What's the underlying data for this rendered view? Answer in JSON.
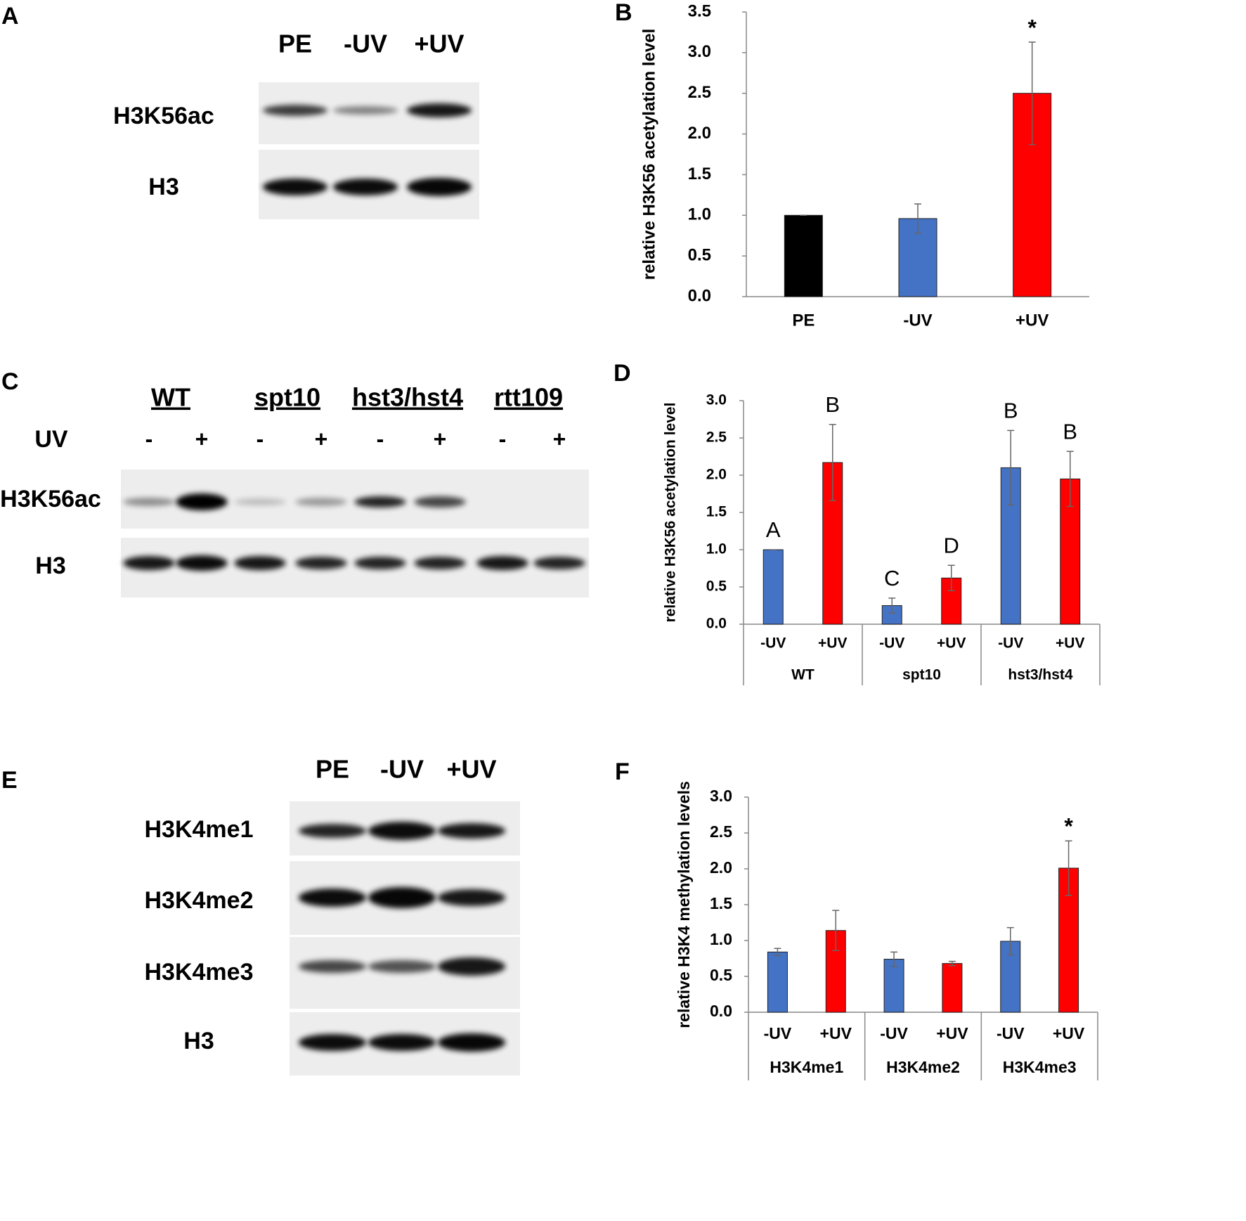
{
  "blots": [
    {
      "panel": "A",
      "lanes": [
        "PE",
        "-UV",
        "+UV"
      ],
      "rows": [
        "H3K56ac",
        "H3"
      ]
    },
    {
      "panel": "C",
      "strains": [
        "WT",
        "spt10",
        "hst3/hst4",
        "rtt109"
      ],
      "treatment": "UV",
      "lanes": [
        "-",
        "+",
        "-",
        "+",
        "-",
        "+",
        "-",
        "+"
      ],
      "rows": [
        "H3K56ac",
        "H3"
      ]
    },
    {
      "panel": "E",
      "lanes": [
        "PE",
        "-UV",
        "+UV"
      ],
      "rows": [
        "H3K4me1",
        "H3K4me2",
        "H3K4me3",
        "H3"
      ]
    }
  ],
  "chart_data": [
    {
      "type": "bar",
      "panel": "B",
      "ylabel": "relative H3K56 acetylation level",
      "categories": [
        "PE",
        "-UV",
        "+UV"
      ],
      "values": [
        1.0,
        0.96,
        2.5
      ],
      "errors": [
        0,
        0.18,
        0.63
      ],
      "colors": [
        "#000000",
        "#4472c4",
        "#ff0000"
      ],
      "annotations": [
        null,
        null,
        "*"
      ],
      "ylim": [
        0,
        3.5
      ],
      "yticks": [
        {
          "value": 0,
          "label": "0.0"
        },
        {
          "value": 0.5,
          "label": "0.5"
        },
        {
          "value": 1,
          "label": "1.0"
        },
        {
          "value": 1.5,
          "label": "1.5"
        },
        {
          "value": 2,
          "label": "2.0"
        },
        {
          "value": 2.5,
          "label": "2.5"
        },
        {
          "value": 3,
          "label": "3.0"
        },
        {
          "value": 3.5,
          "label": "3.5"
        }
      ]
    },
    {
      "type": "bar",
      "panel": "D",
      "ylabel": "relative H3K56 acetylation level",
      "groups": [
        "WT",
        "spt10",
        "hst3/hst4"
      ],
      "categories": [
        "-UV",
        "+UV",
        "-UV",
        "+UV",
        "-UV",
        "+UV"
      ],
      "values": [
        1.0,
        2.17,
        0.25,
        0.62,
        2.1,
        1.95
      ],
      "errors": [
        0,
        0.51,
        0.1,
        0.17,
        0.5,
        0.37
      ],
      "colors": [
        "#4472c4",
        "#ff0000",
        "#4472c4",
        "#ff0000",
        "#4472c4",
        "#ff0000"
      ],
      "annotations": [
        "A",
        "B",
        "C",
        "D",
        "B",
        "B"
      ],
      "ylim": [
        0,
        3
      ],
      "yticks": [
        {
          "value": 0,
          "label": "0.0"
        },
        {
          "value": 0.5,
          "label": "0.5"
        },
        {
          "value": 1,
          "label": "1.0"
        },
        {
          "value": 1.5,
          "label": "1.5"
        },
        {
          "value": 2,
          "label": "2.0"
        },
        {
          "value": 2.5,
          "label": "2.5"
        },
        {
          "value": 3,
          "label": "3.0"
        }
      ]
    },
    {
      "type": "bar",
      "panel": "F",
      "ylabel": "relative H3K4 methylation levels",
      "groups": [
        "H3K4me1",
        "H3K4me2",
        "H3K4me3"
      ],
      "categories": [
        "-UV",
        "+UV",
        "-UV",
        "+UV",
        "-UV",
        "+UV"
      ],
      "values": [
        0.84,
        1.14,
        0.74,
        0.68,
        0.99,
        2.01
      ],
      "errors": [
        0.05,
        0.28,
        0.1,
        0.03,
        0.19,
        0.38
      ],
      "colors": [
        "#4472c4",
        "#ff0000",
        "#4472c4",
        "#ff0000",
        "#4472c4",
        "#ff0000"
      ],
      "annotations": [
        null,
        null,
        null,
        null,
        null,
        "*"
      ],
      "ylim": [
        0,
        3
      ],
      "yticks": [
        {
          "value": 0,
          "label": "0.0"
        },
        {
          "value": 0.5,
          "label": "0.5"
        },
        {
          "value": 1,
          "label": "1.0"
        },
        {
          "value": 1.5,
          "label": "1.5"
        },
        {
          "value": 2,
          "label": "2.0"
        },
        {
          "value": 2.5,
          "label": "2.5"
        },
        {
          "value": 3,
          "label": "3.0"
        }
      ]
    }
  ]
}
